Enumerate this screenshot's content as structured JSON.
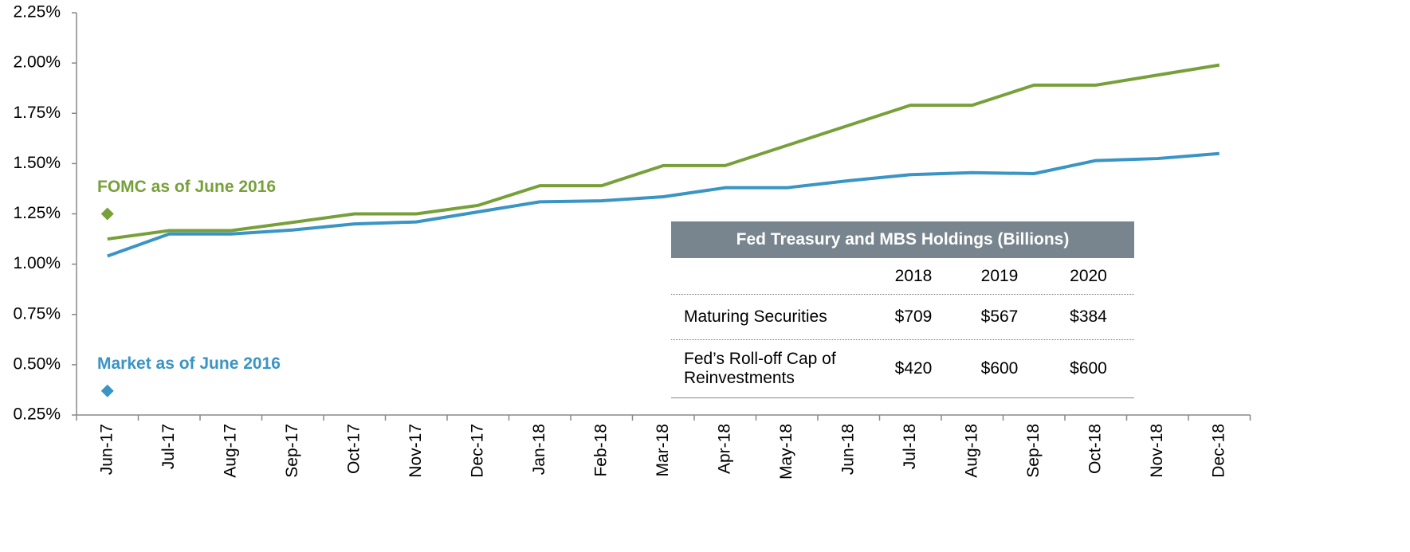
{
  "chart_data": {
    "type": "line",
    "categories": [
      "Jun-17",
      "Jul-17",
      "Aug-17",
      "Sep-17",
      "Oct-17",
      "Nov-17",
      "Dec-17",
      "Jan-18",
      "Feb-18",
      "Mar-18",
      "Apr-18",
      "May-18",
      "Jun-18",
      "Jul-18",
      "Aug-18",
      "Sep-18",
      "Oct-18",
      "Nov-18",
      "Dec-18"
    ],
    "series": [
      {
        "name": "FOMC",
        "color": "#77a03a",
        "values": [
          1.125,
          1.167,
          1.167,
          1.208,
          1.25,
          1.25,
          1.292,
          1.39,
          1.39,
          1.49,
          1.49,
          1.59,
          1.69,
          1.79,
          1.79,
          1.89,
          1.89,
          1.94,
          1.99
        ]
      },
      {
        "name": "Market",
        "color": "#3a94c4",
        "values": [
          1.04,
          1.15,
          1.15,
          1.17,
          1.2,
          1.21,
          1.26,
          1.31,
          1.315,
          1.335,
          1.38,
          1.38,
          1.415,
          1.445,
          1.455,
          1.45,
          1.515,
          1.525,
          1.55
        ]
      }
    ],
    "markers": [
      {
        "label": "FOMC as of June 2016",
        "value": 1.25,
        "color": "#77a03a"
      },
      {
        "label": "Market as of June 2016",
        "value": 0.37,
        "color": "#3a94c4"
      }
    ],
    "ylim": [
      0.25,
      2.25
    ],
    "yticks": [
      {
        "value": 0.25,
        "label": "0.25%"
      },
      {
        "value": 0.5,
        "label": "0.50%"
      },
      {
        "value": 0.75,
        "label": "0.75%"
      },
      {
        "value": 1.0,
        "label": "1.00%"
      },
      {
        "value": 1.25,
        "label": "1.25%"
      },
      {
        "value": 1.5,
        "label": "1.50%"
      },
      {
        "value": 1.75,
        "label": "1.75%"
      },
      {
        "value": 2.0,
        "label": "2.00%"
      },
      {
        "value": 2.25,
        "label": "2.25%"
      }
    ]
  },
  "table": {
    "title": "Fed Treasury and MBS Holdings (Billions)",
    "columns": [
      "2018",
      "2019",
      "2020"
    ],
    "rows": [
      [
        "Maturing Securities",
        "$709",
        "$567",
        "$384"
      ],
      [
        "Fed’s Roll-off Cap of Reinvestments",
        "$420",
        "$600",
        "$600"
      ]
    ]
  }
}
